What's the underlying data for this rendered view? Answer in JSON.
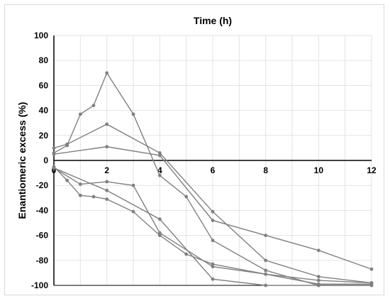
{
  "chart_data": {
    "type": "line",
    "title": "",
    "xlabel": "Time (h)",
    "ylabel": "Enantiomeric excess (%)",
    "xlim": [
      0,
      12
    ],
    "ylim": [
      -100,
      100
    ],
    "x_ticks": [
      "0",
      "2",
      "4",
      "6",
      "8",
      "10",
      "12"
    ],
    "y_ticks": [
      "100",
      "80",
      "60",
      "40",
      "20",
      "0",
      "-20",
      "-40",
      "-60",
      "-80",
      "-100"
    ],
    "x_axis_position": "top",
    "grid": true,
    "legend": "none",
    "line_color": "#808080",
    "series": [
      {
        "x": [
          0,
          0.5,
          1,
          1.5,
          2,
          3,
          4,
          5,
          6,
          8,
          10,
          12
        ],
        "y": [
          6,
          12,
          37,
          44,
          70,
          37,
          -12,
          -29,
          -64,
          -88,
          -100,
          -100
        ]
      },
      {
        "x": [
          0,
          0.5,
          2,
          4,
          6,
          8,
          10,
          12
        ],
        "y": [
          10,
          13,
          29,
          6,
          -41,
          -80,
          -93,
          -98
        ]
      },
      {
        "x": [
          0,
          2,
          4,
          6,
          8,
          10,
          12
        ],
        "y": [
          5,
          11,
          4,
          -48,
          -60,
          -72,
          -87
        ]
      },
      {
        "x": [
          0,
          0.5,
          1,
          1.5,
          2,
          3,
          4,
          5,
          6,
          8,
          10,
          12
        ],
        "y": [
          -5,
          -16,
          -28,
          -29,
          -31,
          -41,
          -60,
          -75,
          -83,
          -91,
          -96,
          -98
        ]
      },
      {
        "x": [
          0,
          1,
          2,
          3,
          4,
          6,
          8,
          10,
          12
        ],
        "y": [
          -6,
          -19,
          -17,
          -20,
          -58,
          -85,
          -91,
          -99,
          -99
        ]
      },
      {
        "x": [
          0,
          2,
          4,
          6,
          8,
          10,
          12
        ],
        "y": [
          -6,
          -24,
          -47,
          -95,
          -100,
          -100,
          -100
        ]
      }
    ]
  }
}
